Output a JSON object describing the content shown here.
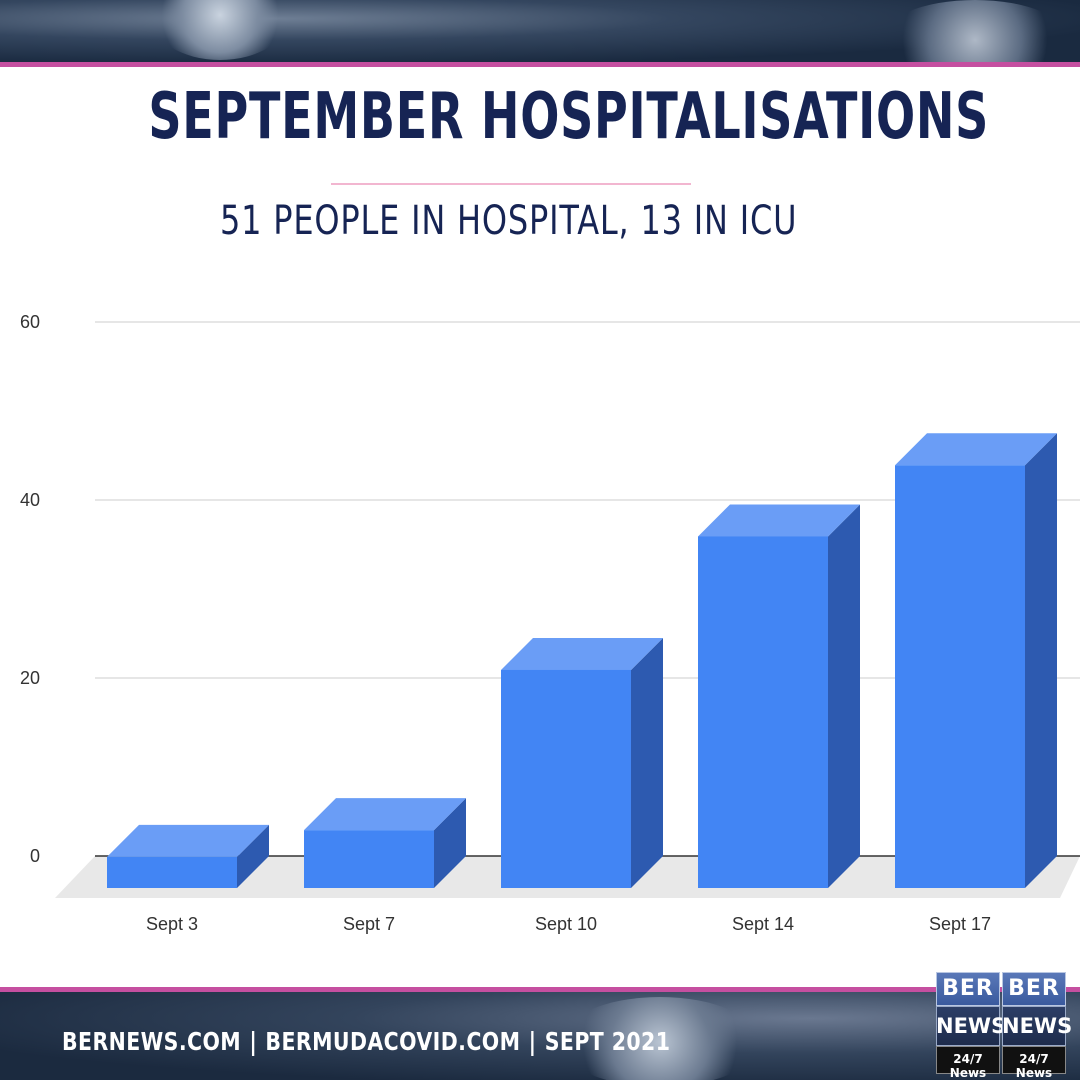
{
  "title": "SEPTEMBER HOSPITALISATIONS",
  "subtitle": "51 PEOPLE IN HOSPITAL, 13 IN ICU",
  "footer": {
    "site1": "BERNEWS.COM",
    "separator": "|",
    "site2": "BERMUDACOVID.COM",
    "date": "SEPT  2021"
  },
  "logo": {
    "line1": "BER",
    "line2": "NEWS",
    "line3": "24/7 News"
  },
  "colors": {
    "bar_front": "#4285f4",
    "bar_top": "#6a9df6",
    "bar_side": "#2d5ab0",
    "title": "#162454",
    "accent": "#c54fa0"
  },
  "chart_data": {
    "type": "bar",
    "style": "3d",
    "categories": [
      "Sept 3",
      "Sept 7",
      "Sept 10",
      "Sept 14",
      "Sept 17"
    ],
    "values": [
      3.5,
      6.5,
      24.5,
      39.5,
      47.5
    ],
    "yticks": [
      "0",
      "20",
      "40",
      "60"
    ],
    "ylim": [
      0,
      60
    ],
    "grid": true,
    "legend": "none"
  }
}
